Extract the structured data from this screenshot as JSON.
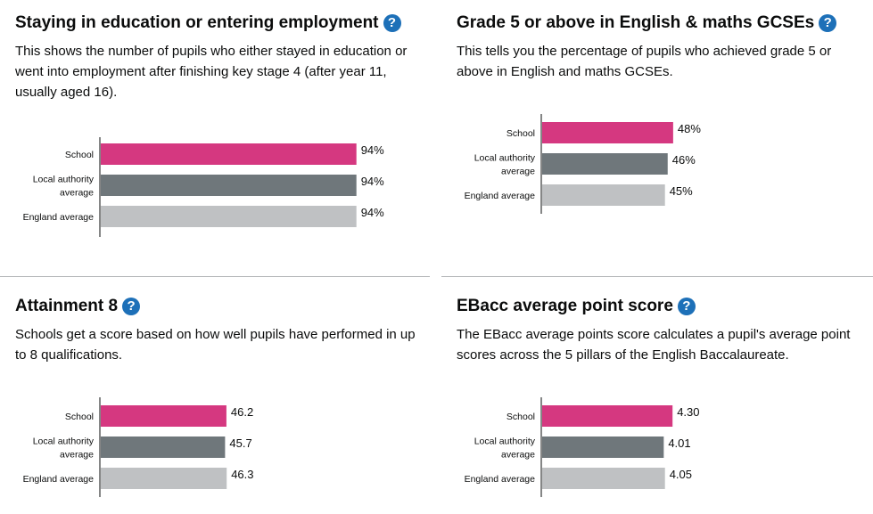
{
  "colors": {
    "school": "#d53880",
    "local_authority": "#6f777b",
    "england": "#bfc1c3",
    "help_icon": "#1d70b8"
  },
  "panels": [
    {
      "title": "Staying in education or entering employment",
      "help_icon": "question-mark",
      "help_glyph": "?",
      "description": "This shows the number of pupils who either stayed in education or went into employment after finishing key stage 4 (after year 11, usually aged 16)."
    },
    {
      "title": "Grade 5 or above in English & maths GCSEs",
      "help_icon": "question-mark",
      "help_glyph": "?",
      "description": "This tells you the percentage of pupils who achieved grade 5 or above in English and maths GCSEs."
    },
    {
      "title": "Attainment 8",
      "help_icon": "question-mark",
      "help_glyph": "?",
      "description": "Schools get a score based on how well pupils have performed in up to 8 qualifications."
    },
    {
      "title": "EBacc average point score",
      "help_icon": "question-mark",
      "help_glyph": "?",
      "description": "The EBacc average points score calculates a pupil's average point scores across the 5 pillars of the English Baccalaureate."
    }
  ],
  "chart_data": [
    {
      "type": "bar",
      "orientation": "horizontal",
      "categories": [
        "School",
        "Local authority average",
        "England average"
      ],
      "category_lines": [
        [
          "School"
        ],
        [
          "Local authority",
          "average"
        ],
        [
          "England average"
        ]
      ],
      "values": [
        94,
        94,
        94
      ],
      "value_labels": [
        "94%",
        "94%",
        "94%"
      ],
      "xlim": [
        0,
        100
      ]
    },
    {
      "type": "bar",
      "orientation": "horizontal",
      "categories": [
        "School",
        "Local authority average",
        "England average"
      ],
      "category_lines": [
        [
          "School"
        ],
        [
          "Local authority",
          "average"
        ],
        [
          "England average"
        ]
      ],
      "values": [
        48,
        46,
        45
      ],
      "value_labels": [
        "48%",
        "46%",
        "45%"
      ],
      "xlim": [
        0,
        100
      ]
    },
    {
      "type": "bar",
      "orientation": "horizontal",
      "categories": [
        "School",
        "Local authority average",
        "England average"
      ],
      "category_lines": [
        [
          "School"
        ],
        [
          "Local authority",
          "average"
        ],
        [
          "England average"
        ]
      ],
      "values": [
        46.2,
        45.7,
        46.3
      ],
      "value_labels": [
        "46.2",
        "45.7",
        "46.3"
      ],
      "xlim": [
        0,
        100
      ]
    },
    {
      "type": "bar",
      "orientation": "horizontal",
      "categories": [
        "School",
        "Local authority average",
        "England average"
      ],
      "category_lines": [
        [
          "School"
        ],
        [
          "Local authority",
          "average"
        ],
        [
          "England average"
        ]
      ],
      "values": [
        4.3,
        4.01,
        4.05
      ],
      "value_labels": [
        "4.30",
        "4.01",
        "4.05"
      ],
      "xlim": [
        0,
        9
      ]
    }
  ]
}
